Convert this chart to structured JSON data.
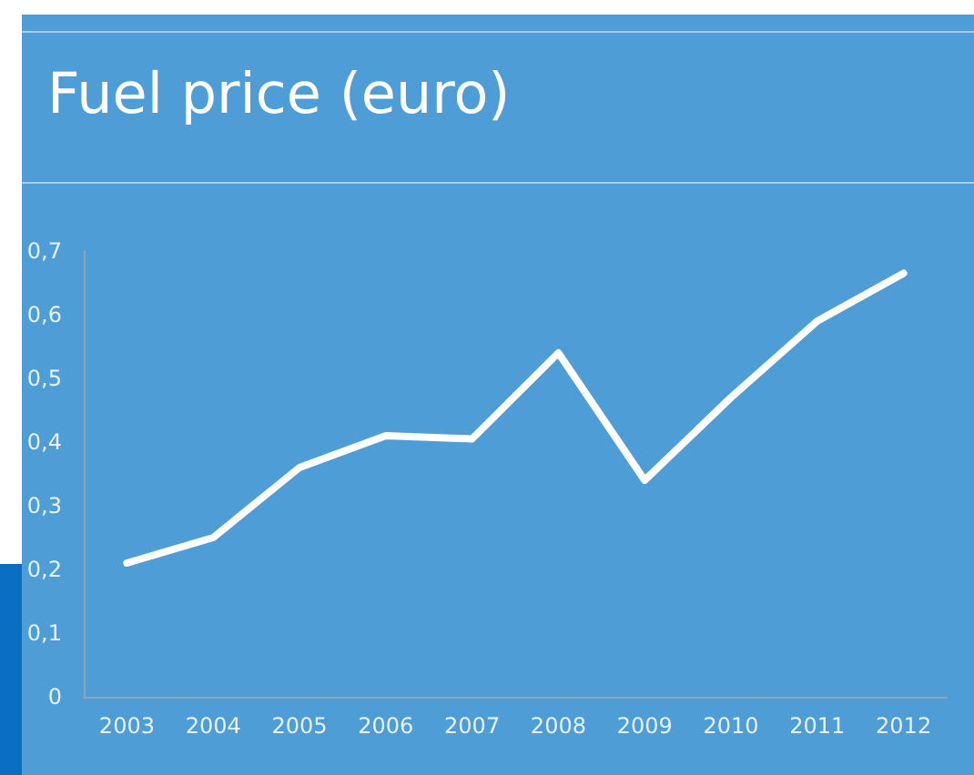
{
  "chart_data": {
    "type": "line",
    "title": "Fuel price (euro)",
    "categories": [
      "2003",
      "2004",
      "2005",
      "2006",
      "2007",
      "2008",
      "2009",
      "2010",
      "2011",
      "2012"
    ],
    "series": [
      {
        "color": "#ffffff",
        "values": [
          0.21,
          0.25,
          0.36,
          0.41,
          0.405,
          0.54,
          0.34,
          0.47,
          0.59,
          0.665
        ]
      }
    ],
    "ylim": [
      0,
      0.7
    ],
    "yticks": [
      0,
      {
        "value": 0.1,
        "label": "0,1"
      },
      {
        "value": 0.2,
        "label": "0,2"
      },
      {
        "value": 0.3,
        "label": "0,3"
      },
      {
        "value": 0.4,
        "label": "0,4"
      },
      {
        "value": 0.5,
        "label": "0,5"
      },
      {
        "value": 0.6,
        "label": "0,6"
      },
      {
        "value": 0.7,
        "label": "0,7"
      }
    ],
    "grid": false,
    "marker": "none",
    "line_style": "solid"
  }
}
